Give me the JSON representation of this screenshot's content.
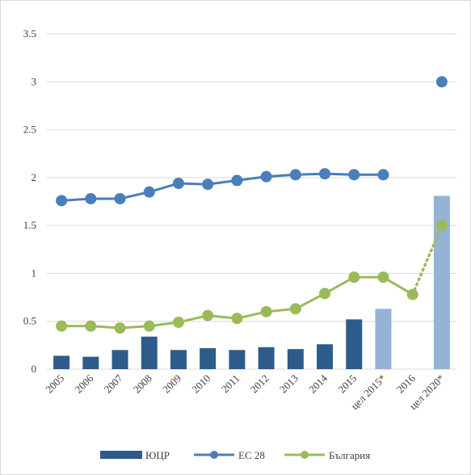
{
  "chart_data": {
    "type": "bar",
    "categories": [
      "2005",
      "2006",
      "2007",
      "2008",
      "2009",
      "2010",
      "2011",
      "2012",
      "2013",
      "2014",
      "2015",
      "цел 2015*",
      "2016",
      "цел 2020*"
    ],
    "ylim": [
      0,
      3.5
    ],
    "y_ticks": [
      "0",
      "0.5",
      "1",
      "1.5",
      "2",
      "2.5",
      "3",
      "3.5"
    ],
    "grid": true,
    "legend_position": "bottom",
    "series": [
      {
        "name": "ЮЦР",
        "type": "bar",
        "color": "#2e5c8a",
        "target_color": "#95b3d7",
        "values": [
          0.14,
          0.13,
          0.2,
          0.34,
          0.2,
          0.22,
          0.2,
          0.23,
          0.21,
          0.26,
          0.52,
          0.63,
          null,
          1.81
        ]
      },
      {
        "name": "ЕС 28",
        "type": "line",
        "color": "#4a7ebb",
        "values": [
          1.76,
          1.78,
          1.78,
          1.85,
          1.94,
          1.93,
          1.97,
          2.01,
          2.03,
          2.04,
          2.03,
          2.03,
          null,
          3.0
        ]
      },
      {
        "name": "България",
        "type": "line",
        "color": "#9bbb59",
        "values": [
          0.45,
          0.45,
          0.43,
          0.45,
          0.49,
          0.56,
          0.53,
          0.6,
          0.63,
          0.79,
          0.96,
          0.96,
          0.78,
          1.5
        ]
      }
    ]
  }
}
